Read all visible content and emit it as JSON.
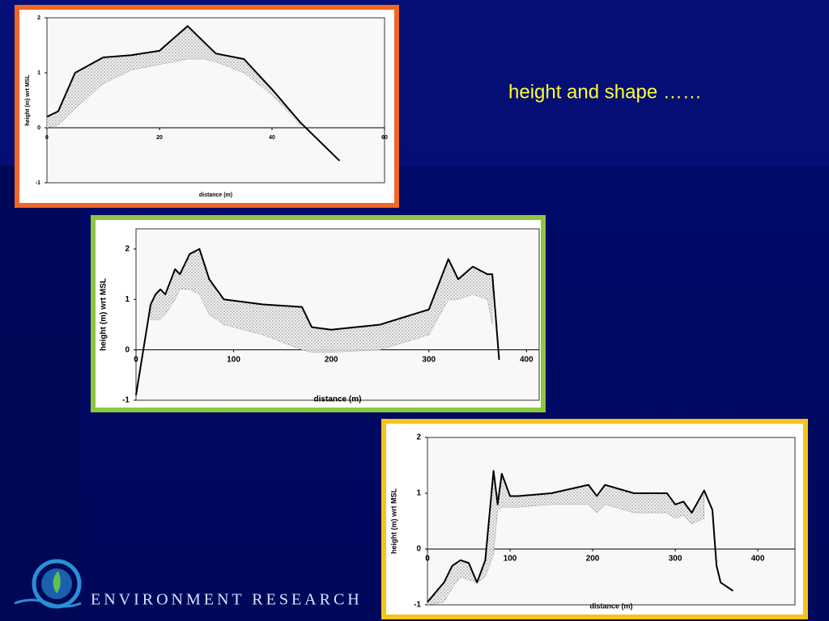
{
  "slide": {
    "title": "height and shape ……",
    "footer": "ENVIRONMENT RESEARCH"
  },
  "chart_data": [
    {
      "type": "line",
      "x_label": "distance (m)",
      "y_label": "height (m) wrt MSL",
      "x": [
        0,
        2,
        5,
        10,
        15,
        20,
        25,
        28,
        30,
        35,
        40,
        45,
        52
      ],
      "series": [
        {
          "color": "#000000",
          "values": [
            0.2,
            0.3,
            1.0,
            1.28,
            1.32,
            1.4,
            1.85,
            1.55,
            1.35,
            1.25,
            0.7,
            0.1,
            -0.6
          ]
        },
        {
          "color": "#9a9a9a",
          "values": [
            0,
            0.05,
            0.35,
            0.8,
            1.05,
            1.15,
            1.25,
            1.25,
            1.2,
            1.0,
            0.6,
            0.05,
            null
          ]
        }
      ],
      "xlim": [
        0,
        60
      ],
      "ylim": [
        -1,
        2
      ],
      "xticks": [
        0,
        20,
        40,
        60
      ],
      "yticks": [
        -1,
        0,
        1,
        2
      ]
    },
    {
      "type": "line",
      "x_label": "distance (m)",
      "y_label": "height (m) wrt MSL",
      "x": [
        0,
        10,
        15,
        20,
        25,
        30,
        40,
        45,
        55,
        65,
        75,
        90,
        130,
        170,
        180,
        200,
        250,
        300,
        320,
        330,
        345,
        360,
        365,
        372
      ],
      "series": [
        {
          "color": "#000000",
          "values": [
            -0.9,
            0.3,
            0.9,
            1.1,
            1.2,
            1.1,
            1.6,
            1.5,
            1.9,
            2.0,
            1.4,
            1.0,
            0.9,
            0.85,
            0.45,
            0.4,
            0.5,
            0.8,
            1.8,
            1.4,
            1.65,
            1.5,
            1.5,
            -0.2
          ]
        },
        {
          "color": "#9a9a9a",
          "values": [
            null,
            null,
            0.6,
            0.6,
            0.6,
            0.7,
            1.0,
            1.2,
            1.2,
            1.1,
            0.7,
            0.5,
            0.3,
            0.0,
            -0.05,
            -0.05,
            0.0,
            0.3,
            1.0,
            1.0,
            1.1,
            1.0,
            0.5,
            null
          ]
        }
      ],
      "xlim": [
        0,
        413
      ],
      "ylim": [
        -1,
        2.4
      ],
      "xticks": [
        0,
        100,
        200,
        300,
        400
      ],
      "yticks": [
        -1,
        0,
        1,
        2
      ]
    },
    {
      "type": "line",
      "x_label": "distance (m)",
      "y_label": "height (m) wrt MSL",
      "x": [
        0,
        20,
        30,
        40,
        50,
        60,
        70,
        80,
        85,
        90,
        100,
        110,
        150,
        195,
        205,
        215,
        250,
        290,
        300,
        310,
        320,
        335,
        345,
        350,
        355,
        360,
        370
      ],
      "series": [
        {
          "color": "#000000",
          "values": [
            -0.95,
            -0.6,
            -0.3,
            -0.2,
            -0.25,
            -0.6,
            -0.2,
            1.4,
            0.8,
            1.35,
            0.95,
            0.95,
            1.0,
            1.15,
            0.95,
            1.15,
            1.0,
            1.0,
            0.8,
            0.85,
            0.65,
            1.05,
            0.7,
            -0.3,
            -0.6,
            -0.65,
            -0.75
          ]
        },
        {
          "color": "#9a9a9a",
          "values": [
            -1,
            -0.95,
            -0.7,
            -0.5,
            -0.55,
            -0.6,
            -0.5,
            -0.1,
            0.7,
            0.75,
            0.75,
            0.75,
            0.8,
            0.8,
            0.65,
            0.8,
            0.65,
            0.65,
            0.55,
            0.6,
            0.45,
            0.55,
            null,
            null,
            null,
            null,
            null
          ]
        }
      ],
      "xlim": [
        0,
        445
      ],
      "ylim": [
        -1,
        2
      ],
      "xticks": [
        0,
        100,
        200,
        300,
        400
      ],
      "yticks": [
        -1,
        0,
        1,
        2
      ]
    }
  ]
}
